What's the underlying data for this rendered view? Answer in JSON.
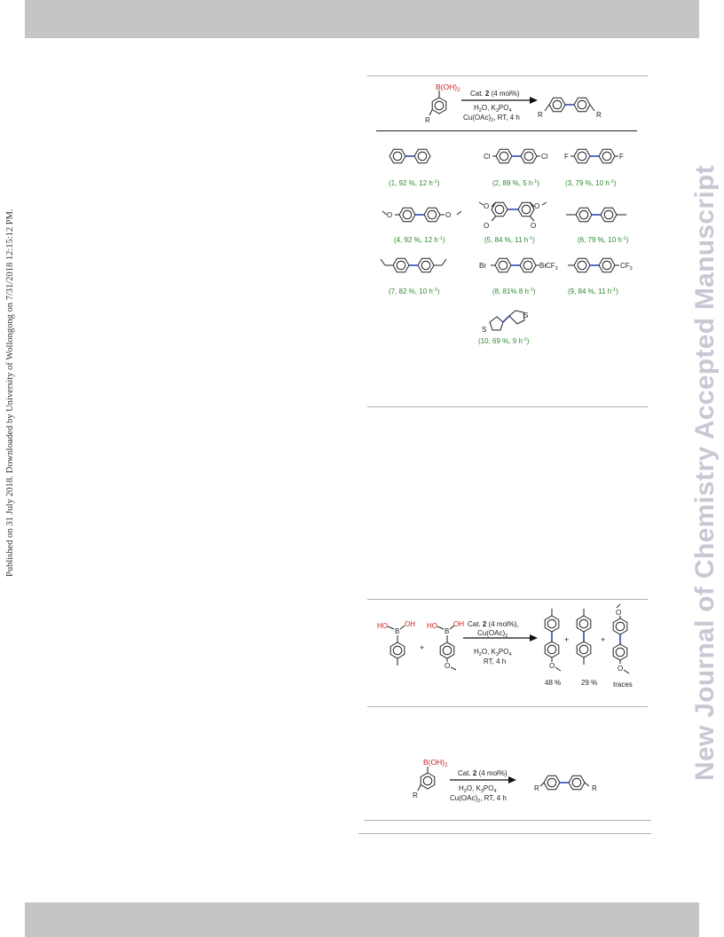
{
  "side_note": "Published on 31 July 2018. Downloaded by University of Wollongong on 7/31/2018 12:15:12 PM.",
  "watermark": "New Journal of Chemistry Accepted Manuscript",
  "scheme1": {
    "boronic": "B(OH)",
    "boronic_sub": "2",
    "reactant_r": "R",
    "cond_1a": "Cat. ",
    "cond_1b": "2",
    "cond_1c": " (4 mol%)",
    "cond_2": "H",
    "cond_2_sub": "2",
    "cond_2b": "O, K",
    "cond_2_sub2": "3",
    "cond_2c": "PO",
    "cond_2_sub3": "4",
    "cond_3": "Cu(OAc)",
    "cond_3_sub": "2",
    "cond_3b": ", RT, 4 h",
    "product_r_left": "R",
    "product_r_right": "R",
    "products": [
      {
        "label": "(1, 92 %, 12 h",
        "sup": "-1",
        "tail": ")"
      },
      {
        "label": "(2, 89 %, 5 h",
        "sup": "-1",
        "tail": ")",
        "sub_left": "Cl",
        "sub_right": "Cl"
      },
      {
        "label": "(3, 79 %, 10 h",
        "sup": "-1",
        "tail": ")",
        "sub_left": "F",
        "sub_right": "F"
      },
      {
        "label": "(4, 92 %, 12 h",
        "sup": "-1",
        "tail": ")",
        "sub_left": "O",
        "sub_right": "O"
      },
      {
        "label": "(5, 84 %, 11 h",
        "sup": "-1",
        "tail": ")",
        "sub_a": "O",
        "sub_b": "O",
        "sub_c": "O",
        "sub_d": "O"
      },
      {
        "label": "(6, 79 %, 10 h",
        "sup": "-1",
        "tail": ")"
      },
      {
        "label": "(7, 82 %, 10 h",
        "sup": "-1",
        "tail": ")"
      },
      {
        "label": "(8, 81% 8 h",
        "sup": "-1",
        "tail": ")",
        "sub_left": "Br",
        "sub_right": "Br"
      },
      {
        "label": "(9, 84 %, 11 h",
        "sup": "-1",
        "tail": ")",
        "sub_left": "CF",
        "sub_left_sub": "3",
        "sub_right": "CF",
        "sub_right_sub": "3"
      },
      {
        "label": "(10, 69 %, 9 h",
        "sup": "-1",
        "tail": ")",
        "sub_left": "S",
        "sub_right": "S"
      }
    ]
  },
  "scheme2": {
    "r1_ho": "HO",
    "r1_b": "B",
    "r1_oh": "OH",
    "plus1": "+",
    "r2_ho": "HO",
    "r2_b": "B",
    "r2_oh": "OH",
    "r2_o": "O",
    "cond_1a": "Cat. ",
    "cond_1b": "2",
    "cond_1c": " (4 mol%),",
    "cond_2": "Cu(OAc)",
    "cond_2_sub": "2",
    "cond_3": "H",
    "cond_3_sub": "2",
    "cond_3b": "O, K",
    "cond_3_sub2": "3",
    "cond_3c": "PO",
    "cond_3_sub3": "4",
    "cond_4": "RT, 4 h",
    "p1_o": "O",
    "p1_yield": "48 %",
    "plus2": "+",
    "p2_yield": "29 %",
    "plus3": "+",
    "p3_o_top": "O",
    "p3_o_bottom": "O",
    "p3_yield": "traces"
  },
  "scheme3": {
    "boronic": "B(OH)",
    "boronic_sub": "2",
    "reactant_r": "R",
    "cond_1a": "Cat. ",
    "cond_1b": "2",
    "cond_1c": " (4 mol%)",
    "cond_2": "H",
    "cond_2_sub": "2",
    "cond_2b": "O, K",
    "cond_2_sub2": "3",
    "cond_2c": "PO",
    "cond_2_sub3": "4",
    "cond_3": "Cu(OAc)",
    "cond_3_sub": "2",
    "cond_3b": ", RT, 4 h",
    "product_r_left": "R",
    "product_r_right": "R"
  }
}
